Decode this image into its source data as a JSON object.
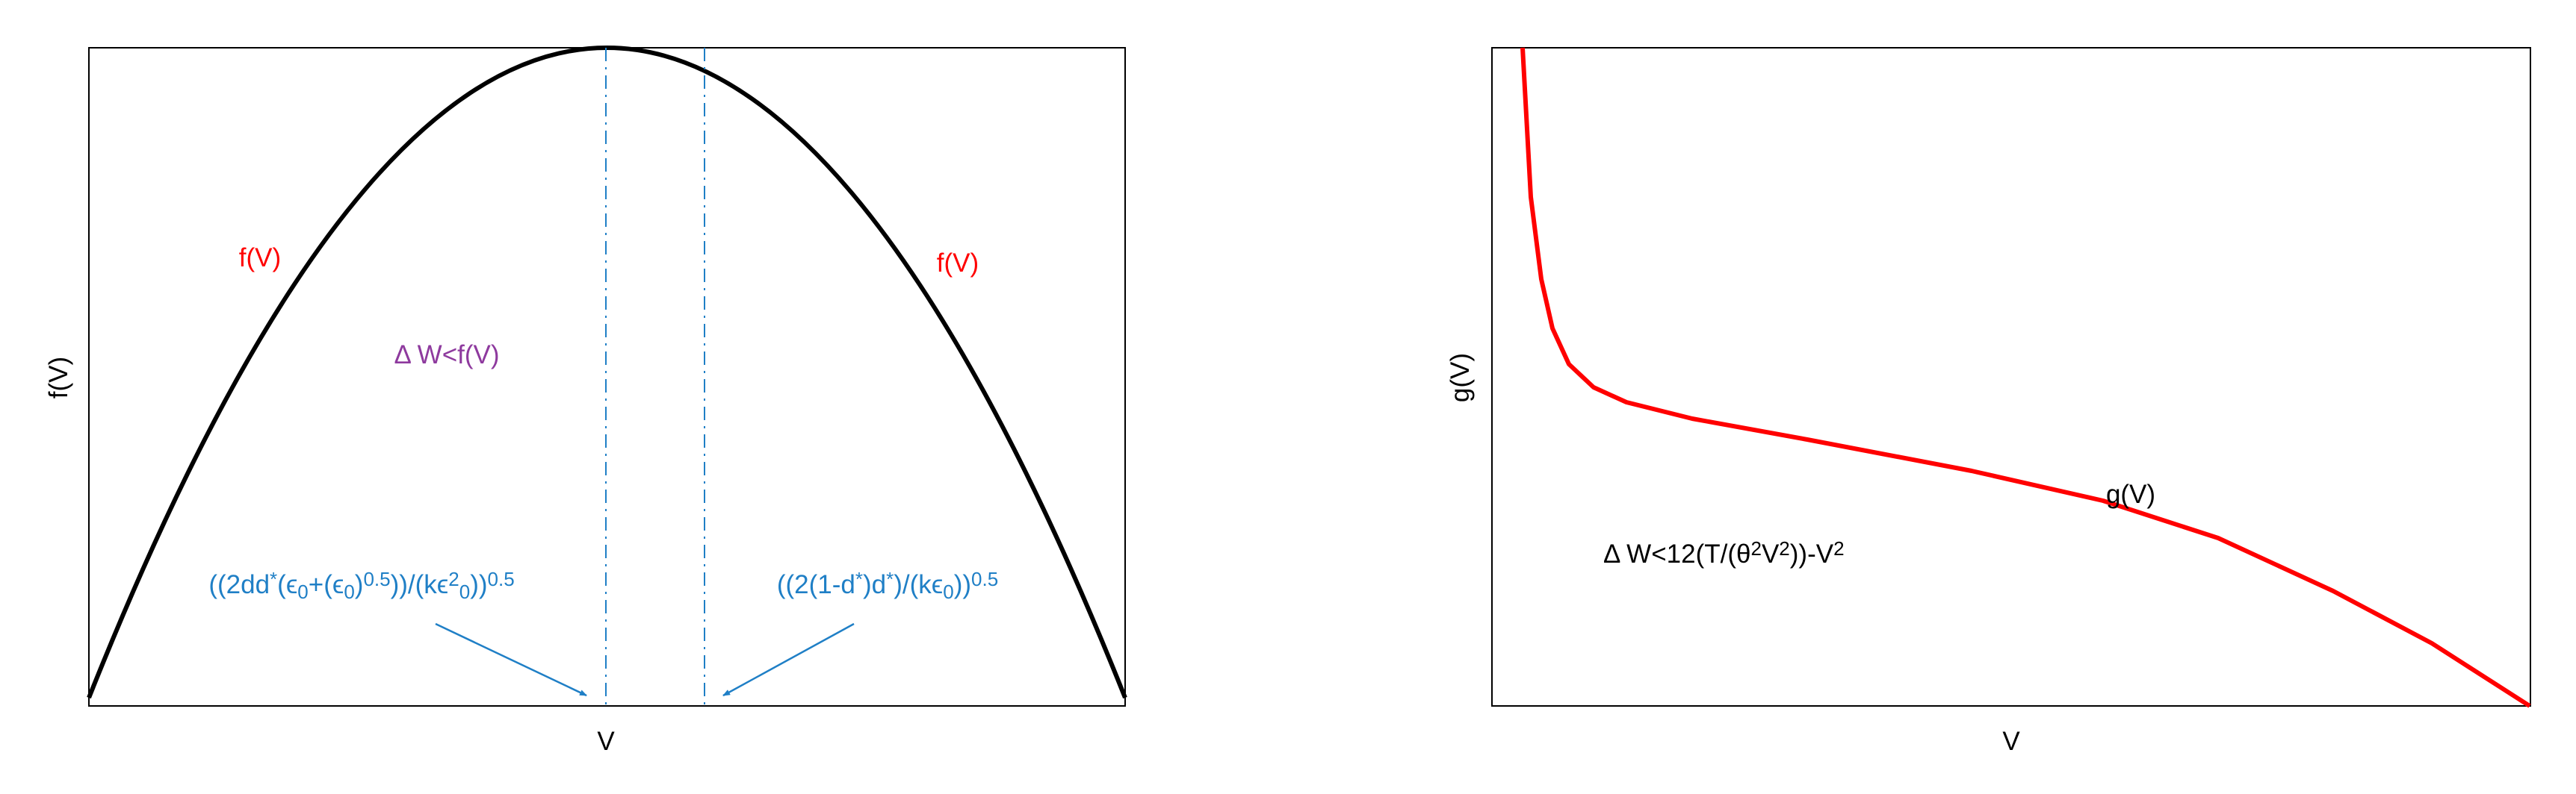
{
  "panels": [
    {
      "y_label": "f(V)",
      "x_label": "V",
      "curve_labels": [
        "f(V)",
        "f(V)"
      ],
      "region_label": {
        "parts": [
          {
            "text": "Δ W<f(V)"
          }
        ]
      },
      "annotations": [
        {
          "parts": [
            {
              "text": "((2dd"
            },
            {
              "text": "*",
              "pos": "sup"
            },
            {
              "text": "(ϵ"
            },
            {
              "text": "0",
              "pos": "sub"
            },
            {
              "text": "+(ϵ"
            },
            {
              "text": "0",
              "pos": "sub"
            },
            {
              "text": ")"
            },
            {
              "text": "0.5",
              "pos": "sup"
            },
            {
              "text": "))/(kϵ"
            },
            {
              "text": "2",
              "pos": "sup"
            },
            {
              "text": "0",
              "pos": "sub"
            },
            {
              "text": "))"
            },
            {
              "text": "0.5",
              "pos": "sup"
            }
          ]
        },
        {
          "parts": [
            {
              "text": "((2(1-d"
            },
            {
              "text": "*",
              "pos": "sup"
            },
            {
              "text": ")d"
            },
            {
              "text": "*",
              "pos": "sup"
            },
            {
              "text": ")/(kϵ"
            },
            {
              "text": "0",
              "pos": "sub"
            },
            {
              "text": "))"
            },
            {
              "text": "0.5",
              "pos": "sup"
            }
          ]
        }
      ]
    },
    {
      "y_label": "g(V)",
      "x_label": "V",
      "curve_labels": [
        "g(V)"
      ],
      "region_label": {
        "parts": [
          {
            "text": "Δ W<12(T/(θ"
          },
          {
            "text": "2",
            "pos": "sup"
          },
          {
            "text": "V"
          },
          {
            "text": "2",
            "pos": "sup"
          },
          {
            "text": "))-V"
          },
          {
            "text": "2",
            "pos": "sup"
          }
        ]
      },
      "annotations": []
    }
  ]
}
